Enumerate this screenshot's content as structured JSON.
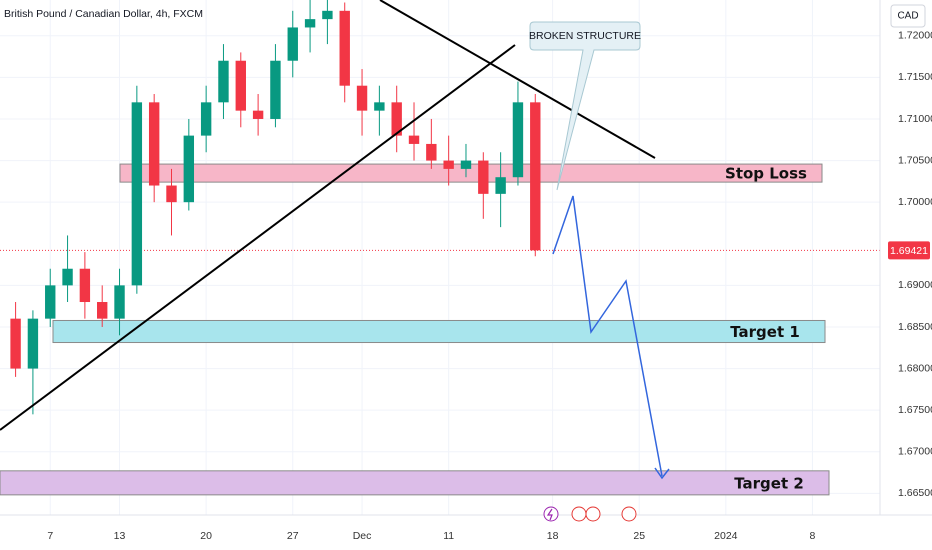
{
  "chart_data": {
    "type": "candlestick",
    "title": "British Pound / Canadian Dollar, 4h, FXCM",
    "currency": "CAD",
    "x": [
      -2,
      -1,
      0,
      1,
      2,
      3,
      4,
      5,
      6,
      7,
      8,
      9,
      10,
      11,
      12,
      13,
      14,
      15,
      16,
      17,
      18,
      19,
      20,
      21,
      22,
      23,
      24,
      25,
      26,
      27,
      28
    ],
    "open": [
      1.686,
      1.68,
      1.686,
      1.69,
      1.692,
      1.688,
      1.686,
      1.69,
      1.712,
      1.702,
      1.7,
      1.708,
      1.712,
      1.717,
      1.711,
      1.71,
      1.717,
      1.721,
      1.722,
      1.723,
      1.714,
      1.711,
      1.712,
      1.708,
      1.707,
      1.705,
      1.704,
      1.705,
      1.701,
      1.703,
      1.712
    ],
    "high": [
      1.688,
      1.687,
      1.692,
      1.696,
      1.694,
      1.69,
      1.692,
      1.714,
      1.713,
      1.704,
      1.71,
      1.714,
      1.719,
      1.718,
      1.713,
      1.719,
      1.723,
      1.725,
      1.725,
      1.724,
      1.716,
      1.714,
      1.714,
      1.712,
      1.71,
      1.708,
      1.707,
      1.706,
      1.706,
      1.7145,
      1.713
    ],
    "low": [
      1.679,
      1.6745,
      1.685,
      1.688,
      1.686,
      1.685,
      1.684,
      1.689,
      1.7,
      1.696,
      1.699,
      1.706,
      1.71,
      1.709,
      1.708,
      1.709,
      1.715,
      1.718,
      1.719,
      1.712,
      1.708,
      1.708,
      1.706,
      1.705,
      1.704,
      1.702,
      1.703,
      1.698,
      1.697,
      1.702,
      1.6935
    ],
    "close": [
      1.68,
      1.686,
      1.69,
      1.692,
      1.688,
      1.686,
      1.69,
      1.712,
      1.702,
      1.7,
      1.708,
      1.712,
      1.717,
      1.711,
      1.71,
      1.717,
      1.721,
      1.722,
      1.723,
      1.714,
      1.711,
      1.712,
      1.708,
      1.707,
      1.705,
      1.704,
      1.705,
      1.701,
      1.703,
      1.712,
      1.69421
    ],
    "up_color": "#089981",
    "down_color": "#f23645",
    "xlim": [
      -2.9,
      47.9
    ],
    "xticks": [
      {
        "value": 0,
        "label": "7"
      },
      {
        "value": 4,
        "label": "13"
      },
      {
        "value": 9,
        "label": "20"
      },
      {
        "value": 14,
        "label": "27"
      },
      {
        "value": 18,
        "label": "Dec"
      },
      {
        "value": 23,
        "label": "11"
      },
      {
        "value": 29,
        "label": "18"
      },
      {
        "value": 34,
        "label": "25"
      },
      {
        "value": 39,
        "label": "2024"
      },
      {
        "value": 44,
        "label": "8"
      }
    ],
    "ylim": [
      1.6624,
      1.7243
    ],
    "yticks": [
      {
        "value": 1.665,
        "label": "1.66500"
      },
      {
        "value": 1.67,
        "label": "1.67000"
      },
      {
        "value": 1.675,
        "label": "1.67500"
      },
      {
        "value": 1.68,
        "label": "1.68000"
      },
      {
        "value": 1.685,
        "label": "1.68500"
      },
      {
        "value": 1.69,
        "label": "1.69000"
      },
      {
        "value": 1.7,
        "label": "1.70000"
      },
      {
        "value": 1.705,
        "label": "1.70500"
      },
      {
        "value": 1.71,
        "label": "1.71000"
      },
      {
        "value": 1.715,
        "label": "1.71500"
      },
      {
        "value": 1.72,
        "label": "1.72000"
      }
    ],
    "last_price": 1.69421,
    "zones": [
      {
        "label": "Stop Loss",
        "range": [
          1.70241,
          1.70458
        ],
        "color": "#f7b6c8"
      },
      {
        "label": "Target 1",
        "range": [
          1.68313,
          1.68578
        ],
        "color": "#a8e5ed"
      },
      {
        "label": "Target 2",
        "range": [
          1.66482,
          1.66771
        ],
        "color": "#dcbde8"
      }
    ],
    "callout": "BROKEN STRUCTURE"
  }
}
